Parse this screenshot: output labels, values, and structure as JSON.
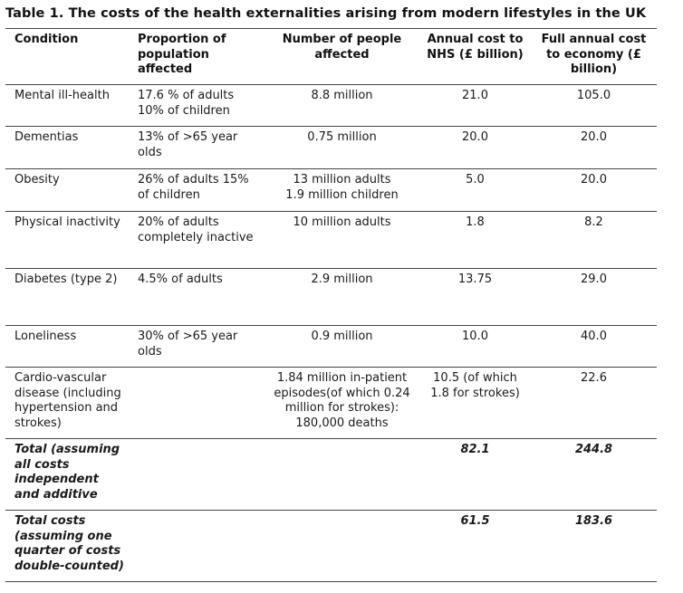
{
  "title": "Table 1. The costs of the health externalities arising from modern lifestyles in the UK",
  "columns": [
    "Condition",
    "Proportion of population affected",
    "Number of people affected",
    "Annual cost to NHS (£ billion)",
    "Full annual cost to economy (£ billion)"
  ],
  "rows": [
    {
      "condition": "Mental ill-health",
      "proportion": [
        "17.6 % of adults",
        "10% of children"
      ],
      "number": [
        "8.8 million"
      ],
      "nhs": "21.0",
      "economy": "105.0"
    },
    {
      "condition": "Dementias",
      "proportion": [
        "13% of >65 year olds"
      ],
      "number": [
        "0.75 million"
      ],
      "nhs": "20.0",
      "economy": "20.0"
    },
    {
      "condition": "Obesity",
      "proportion": [
        "26% of adults 15% of children"
      ],
      "number": [
        "13 million adults",
        "1.9 million children"
      ],
      "nhs": "5.0",
      "economy": "20.0"
    },
    {
      "condition": "Physical inactivity",
      "proportion": [
        "20% of adults completely inactive"
      ],
      "number": [
        "10 million adults"
      ],
      "nhs": "1.8",
      "economy": "8.2"
    },
    {
      "condition": "Diabetes (type 2)",
      "proportion": [
        "4.5% of adults"
      ],
      "number": [
        "2.9 million"
      ],
      "nhs": "13.75",
      "economy": "29.0"
    },
    {
      "condition": "Loneliness",
      "proportion": [
        "30% of >65 year olds"
      ],
      "number": [
        "0.9 million"
      ],
      "nhs": "10.0",
      "economy": "40.0"
    },
    {
      "condition": "Cardio-vascular disease (including hypertension and strokes)",
      "proportion": [],
      "number": [
        "1.84 million in-patient episodes(of which 0.24 million for strokes): 180,000 deaths"
      ],
      "nhs": "10.5 (of which 1.8 for strokes)",
      "economy": "22.6"
    }
  ],
  "totals": [
    {
      "label": "Total (assuming all costs independent and additive",
      "nhs": "82.1",
      "economy": "244.8"
    },
    {
      "label": "Total costs (assuming one quarter of costs double-counted)",
      "nhs": "61.5",
      "economy": "183.6"
    }
  ]
}
